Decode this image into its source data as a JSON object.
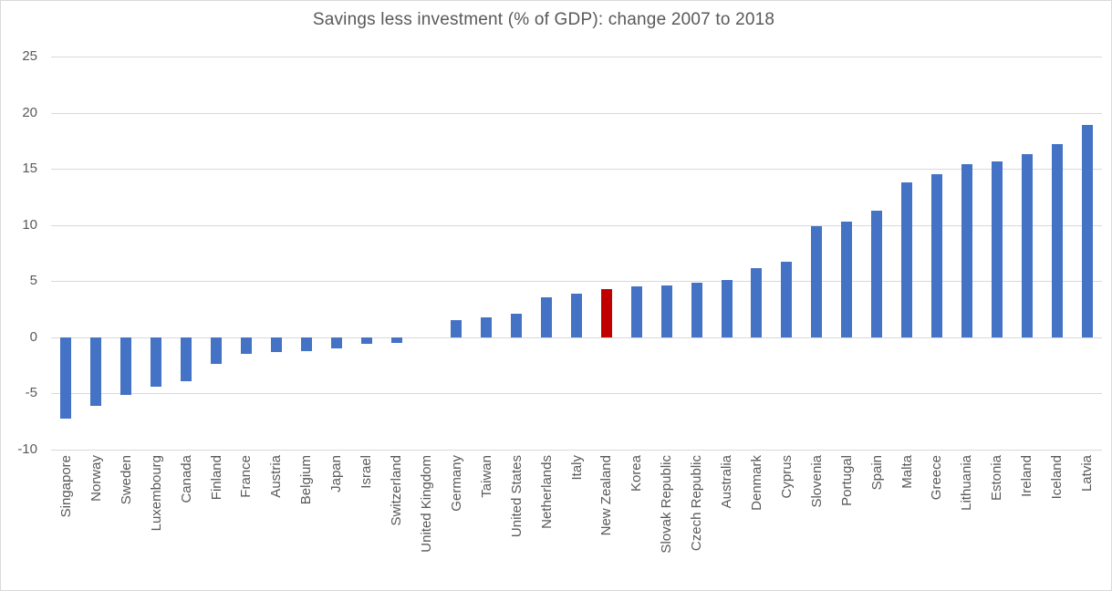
{
  "chart_data": {
    "type": "bar",
    "title": "Savings less investment (% of GDP): change 2007 to 2018",
    "xlabel": "",
    "ylabel": "",
    "ylim": [
      -10,
      25
    ],
    "yticks": [
      25,
      20,
      15,
      10,
      5,
      0,
      -5,
      -10
    ],
    "grid": "horizontal-only",
    "legend_position": "none",
    "x_label_rotation_degrees": 90,
    "categories": [
      "Singapore",
      "Norway",
      "Sweden",
      "Luxembourg",
      "Canada",
      "Finland",
      "France",
      "Austria",
      "Belgium",
      "Japan",
      "Israel",
      "Switzerland",
      "United Kingdom",
      "Germany",
      "Taiwan",
      "United States",
      "Netherlands",
      "Italy",
      "New Zealand",
      "Korea",
      "Slovak Republic",
      "Czech Republic",
      "Australia",
      "Denmark",
      "Cyprus",
      "Slovenia",
      "Portugal",
      "Spain",
      "Malta",
      "Greece",
      "Lithuania",
      "Estonia",
      "Ireland",
      "Iceland",
      "Latvia"
    ],
    "values": [
      -7.2,
      -6.1,
      -5.1,
      -4.4,
      -3.9,
      -2.4,
      -1.5,
      -1.3,
      -1.2,
      -1.0,
      -0.6,
      -0.5,
      0.0,
      1.5,
      1.8,
      2.1,
      3.6,
      3.9,
      4.3,
      4.5,
      4.6,
      4.9,
      5.1,
      6.2,
      6.7,
      9.9,
      10.3,
      11.3,
      13.8,
      14.5,
      15.4,
      15.7,
      16.3,
      17.2,
      18.9
    ],
    "highlight_category": "New Zealand",
    "colors": {
      "bar": "#4472C4",
      "highlight_bar": "#C00000",
      "gridline": "#D9D9D9",
      "axis_text": "#595959",
      "title_text": "#595959",
      "chart_border": "#D9D9D9",
      "background": "#FFFFFF"
    }
  }
}
